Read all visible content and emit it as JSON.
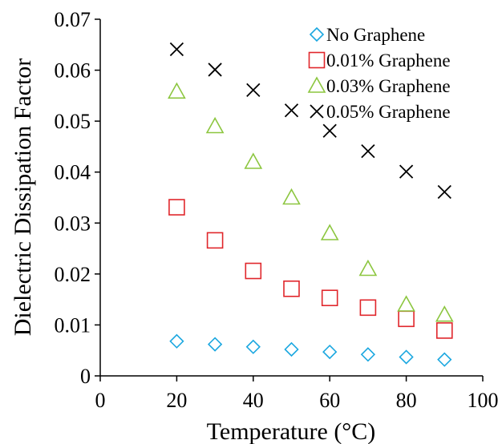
{
  "chart_data": {
    "type": "scatter",
    "title": "",
    "xlabel": "Temperature (°C)",
    "ylabel": "Dielectric Dissipation Factor",
    "xlim": [
      0,
      100
    ],
    "ylim": [
      0,
      0.07
    ],
    "xticks": [
      0,
      20,
      40,
      60,
      80,
      100
    ],
    "yticks": [
      0,
      0.01,
      0.02,
      0.03,
      0.04,
      0.05,
      0.06,
      0.07
    ],
    "xtick_labels": [
      "0",
      "20",
      "40",
      "60",
      "80",
      "100"
    ],
    "ytick_labels": [
      "0",
      "0.01",
      "0.02",
      "0.03",
      "0.04",
      "0.05",
      "0.06",
      "0.07"
    ],
    "grid": false,
    "legend_position": "top-right",
    "x": [
      20,
      30,
      40,
      50,
      60,
      70,
      80,
      90
    ],
    "series": [
      {
        "name": "No Graphene",
        "marker": "diamond",
        "color": "#1aa7e0",
        "values": [
          0.0068,
          0.0062,
          0.0057,
          0.0052,
          0.0047,
          0.0042,
          0.0037,
          0.0032
        ]
      },
      {
        "name": "0.01% Graphene",
        "marker": "square",
        "color": "#e0262b",
        "values": [
          0.0331,
          0.0266,
          0.0206,
          0.0171,
          0.0153,
          0.0134,
          0.0112,
          0.0089
        ]
      },
      {
        "name": "0.03% Graphene",
        "marker": "triangle",
        "color": "#8cc63f",
        "values": [
          0.0558,
          0.049,
          0.042,
          0.035,
          0.028,
          0.021,
          0.014,
          0.012
        ]
      },
      {
        "name": "0.05% Graphene",
        "marker": "x",
        "color": "#000000",
        "values": [
          0.0641,
          0.0601,
          0.0561,
          0.0521,
          0.0481,
          0.0441,
          0.0401,
          0.0361
        ]
      }
    ]
  }
}
